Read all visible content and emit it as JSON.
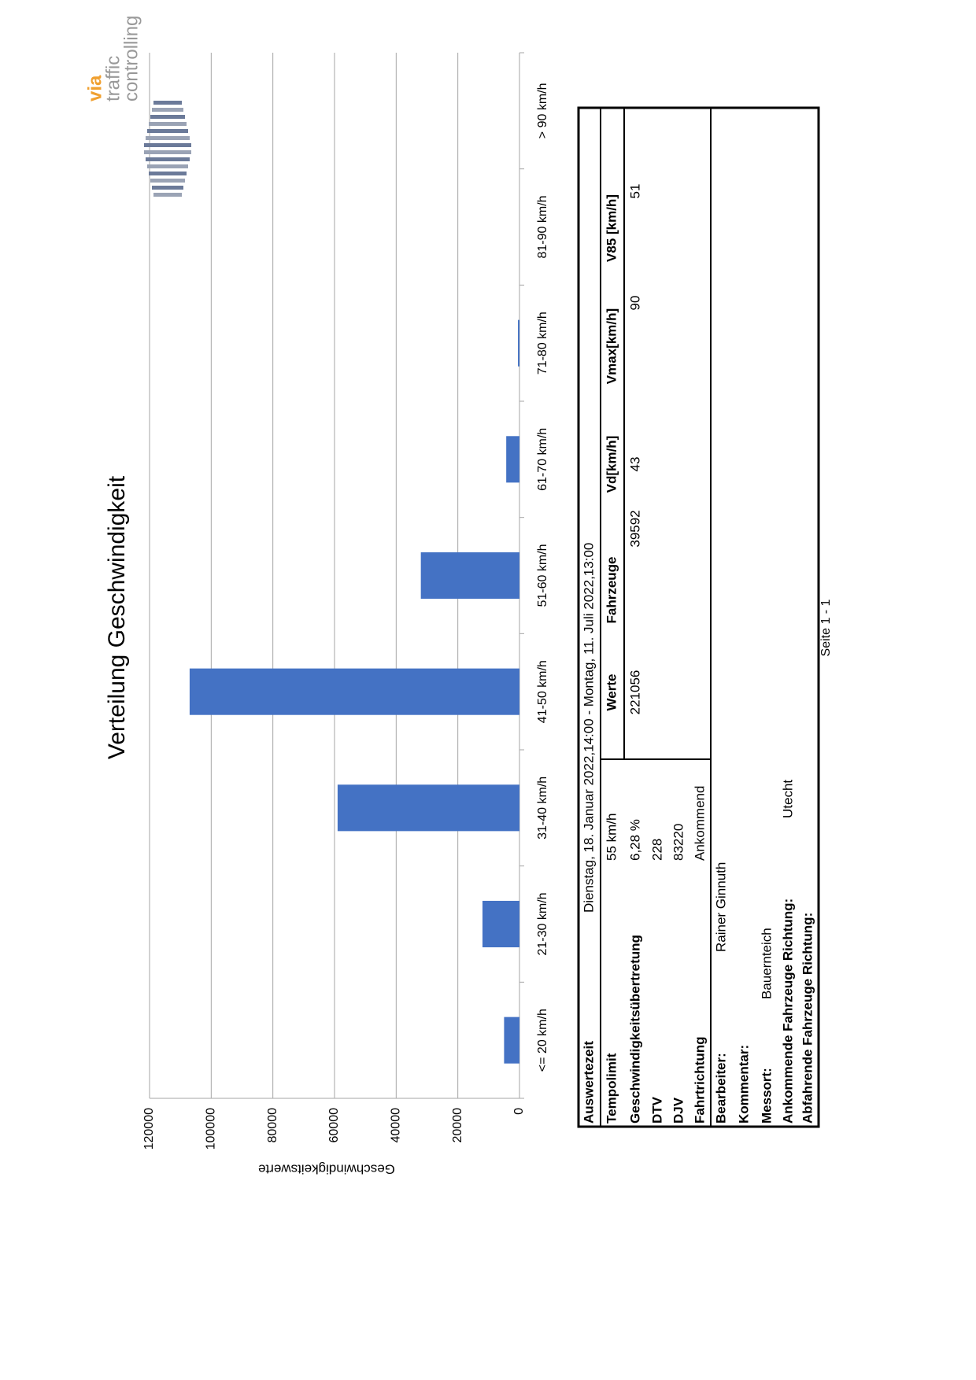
{
  "chart_data": {
    "type": "bar",
    "title": "Verteilung Geschwindigkeit",
    "y_label": "Geschwindigkeitswerte",
    "categories": [
      "<= 20 km/h",
      "21-30 km/h",
      "31-40 km/h",
      "41-50 km/h",
      "51-60 km/h",
      "61-70 km/h",
      "71-80 km/h",
      "81-90 km/h",
      "> 90 km/h"
    ],
    "values": [
      5000,
      12000,
      59000,
      107000,
      32000,
      4300,
      500,
      0,
      0
    ],
    "color": "#4472c4",
    "ylim": [
      0,
      120000
    ],
    "yticks": [
      0,
      20000,
      40000,
      60000,
      80000,
      100000,
      120000
    ],
    "grid": true
  },
  "logo": {
    "line1": "via",
    "line2": "traffic",
    "line3": "controlling"
  },
  "table": {
    "period": {
      "label": "Auswertezeit",
      "value": "Dienstag, 18. Januar 2022,14:00  -  Montag, 11. Juli 2022,13:00"
    },
    "rows": [
      [
        "Tempolimit",
        "55  km/h"
      ],
      [
        "Geschwindigkeitsübertretung",
        "6,28 %"
      ],
      [
        "DTV",
        "228"
      ],
      [
        "DJV",
        "83220"
      ],
      [
        "Fahrtrichtung",
        "Ankommend"
      ]
    ],
    "stats_header": [
      "Werte",
      "Fahrzeuge",
      "Vd[km/h]",
      "Vmax[km/h]",
      "V85 [km/h]"
    ],
    "stats_values": [
      "221056",
      "39592",
      "43",
      "90",
      "51"
    ],
    "info": [
      [
        "Bearbeiter:",
        "Rainer Ginnuth"
      ],
      [
        "Kommentar:"
      ],
      [
        "Messort:",
        "Bauernteich"
      ],
      [
        "Ankommende Fahrzeuge Richtung:",
        "Utecht"
      ],
      [
        "Abfahrende Fahrzeuge Richtung:"
      ]
    ]
  },
  "footer": "Seite 1 - 1"
}
